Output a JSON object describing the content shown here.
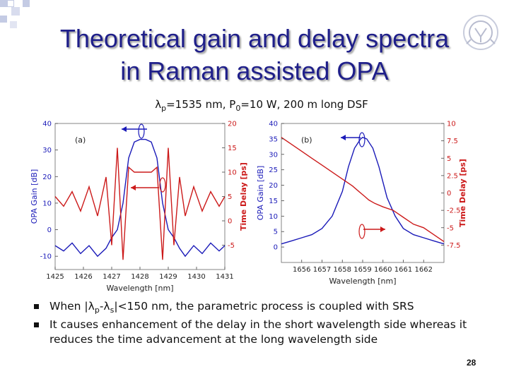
{
  "slide": {
    "title_line1": "Theoretical gain and delay spectra",
    "title_line2": "in Raman assisted OPA",
    "sub_lambda": "λ",
    "sub_p": "p",
    "sub_mid": "=1535 nm, P",
    "sub_0": "0",
    "sub_tail": "=10 W, 200 m long DSF",
    "bullets": [
      {
        "pre": "When |λ",
        "s1": "p",
        "mid": "-λ",
        "s2": "s",
        "post": "|<150 nm, the parametric process is coupled with SRS"
      },
      {
        "text": "It causes enhancement of the delay in the short wavelength side whereas it reduces the time advancement at the long wavelength side"
      }
    ],
    "page_number": "28",
    "colors": {
      "title": "#1f1f8a",
      "gain": "#1a1ab8",
      "delay": "#cc1a1a",
      "deco_blue": "#c4cbe4"
    }
  },
  "chart_data": [
    {
      "type": "line",
      "panel_label": "(a)",
      "xlabel": "Wavelength [nm]",
      "ylabel_left": "OPA Gain [dB]",
      "ylabel_right": "Time Delay [ps]",
      "xlim": [
        1425,
        1431
      ],
      "ylim_left": [
        -15,
        40
      ],
      "ylim_right": [
        -10,
        20
      ],
      "x_ticks": [
        1425,
        1426,
        1427,
        1428,
        1429,
        1430,
        1431
      ],
      "y_ticks_left": [
        -10,
        0,
        10,
        20,
        30,
        40
      ],
      "y_ticks_right": [
        -5,
        0,
        5,
        10,
        15,
        20
      ],
      "series": [
        {
          "axis": "left",
          "color": "#1a1ab8",
          "x": [
            1425.0,
            1425.3,
            1425.6,
            1425.9,
            1426.2,
            1426.5,
            1426.8,
            1427.0,
            1427.2,
            1427.4,
            1427.6,
            1427.8,
            1428.0,
            1428.2,
            1428.4,
            1428.6,
            1428.8,
            1429.0,
            1429.2,
            1429.4,
            1429.6,
            1429.9,
            1430.2,
            1430.5,
            1430.8,
            1431.0
          ],
          "y": [
            -6,
            -8,
            -5,
            -9,
            -6,
            -10,
            -7,
            -3,
            0,
            10,
            27,
            33,
            34,
            34,
            33,
            27,
            10,
            0,
            -3,
            -7,
            -10,
            -6,
            -9,
            -5,
            -8,
            -6
          ]
        },
        {
          "axis": "right",
          "color": "#cc1a1a",
          "x": [
            1425.0,
            1425.3,
            1425.6,
            1425.9,
            1426.2,
            1426.5,
            1426.8,
            1427.0,
            1427.2,
            1427.4,
            1427.6,
            1427.8,
            1428.0,
            1428.2,
            1428.4,
            1428.6,
            1428.8,
            1429.0,
            1429.2,
            1429.4,
            1429.6,
            1429.9,
            1430.2,
            1430.5,
            1430.8,
            1431.0
          ],
          "y": [
            5,
            3,
            6,
            2,
            7,
            1,
            9,
            -5,
            15,
            -8,
            11,
            10,
            10,
            10,
            10,
            11,
            -8,
            15,
            -5,
            9,
            1,
            7,
            2,
            6,
            3,
            5
          ]
        }
      ]
    },
    {
      "type": "line",
      "panel_label": "(b)",
      "xlabel": "Wavelength [nm]",
      "ylabel_left": "OPA Gain [dB]",
      "ylabel_right": "Time Delay [ps]",
      "xlim": [
        1655,
        1663
      ],
      "ylim_left": [
        -5,
        40
      ],
      "ylim_right": [
        -10,
        10
      ],
      "x_ticks": [
        1656,
        1657,
        1658,
        1659,
        1660,
        1661,
        1662
      ],
      "x_tick_labels": [
        "1656",
        "1657",
        "1658",
        "1659",
        "1660",
        "1661",
        "1662"
      ],
      "y_ticks_left": [
        0,
        5,
        10,
        15,
        20,
        25,
        30,
        35,
        40
      ],
      "y_ticks_right": [
        -7.5,
        -5,
        -2.5,
        0,
        2.5,
        5,
        7.5,
        10
      ],
      "series": [
        {
          "axis": "left",
          "color": "#1a1ab8",
          "x": [
            1655.0,
            1655.5,
            1656.0,
            1656.5,
            1657.0,
            1657.5,
            1658.0,
            1658.3,
            1658.6,
            1658.9,
            1659.0,
            1659.2,
            1659.5,
            1659.8,
            1660.2,
            1660.6,
            1661.0,
            1661.5,
            1662.0,
            1662.5,
            1663.0
          ],
          "y": [
            1,
            2,
            3,
            4,
            6,
            10,
            18,
            26,
            32,
            35,
            35.5,
            35,
            32,
            26,
            16,
            10,
            6,
            4,
            3,
            2,
            1
          ]
        },
        {
          "axis": "right",
          "color": "#cc1a1a",
          "x": [
            1655.0,
            1655.5,
            1656.0,
            1656.5,
            1657.0,
            1657.5,
            1658.0,
            1658.5,
            1658.9,
            1659.1,
            1659.3,
            1659.6,
            1660.0,
            1660.5,
            1661.0,
            1661.5,
            1662.0,
            1662.5,
            1663.0
          ],
          "y": [
            8,
            7,
            6,
            5,
            4,
            3,
            2,
            1,
            0,
            -0.5,
            -1,
            -1.5,
            -2,
            -2.5,
            -3.5,
            -4.5,
            -5,
            -6,
            -7
          ]
        }
      ]
    }
  ]
}
